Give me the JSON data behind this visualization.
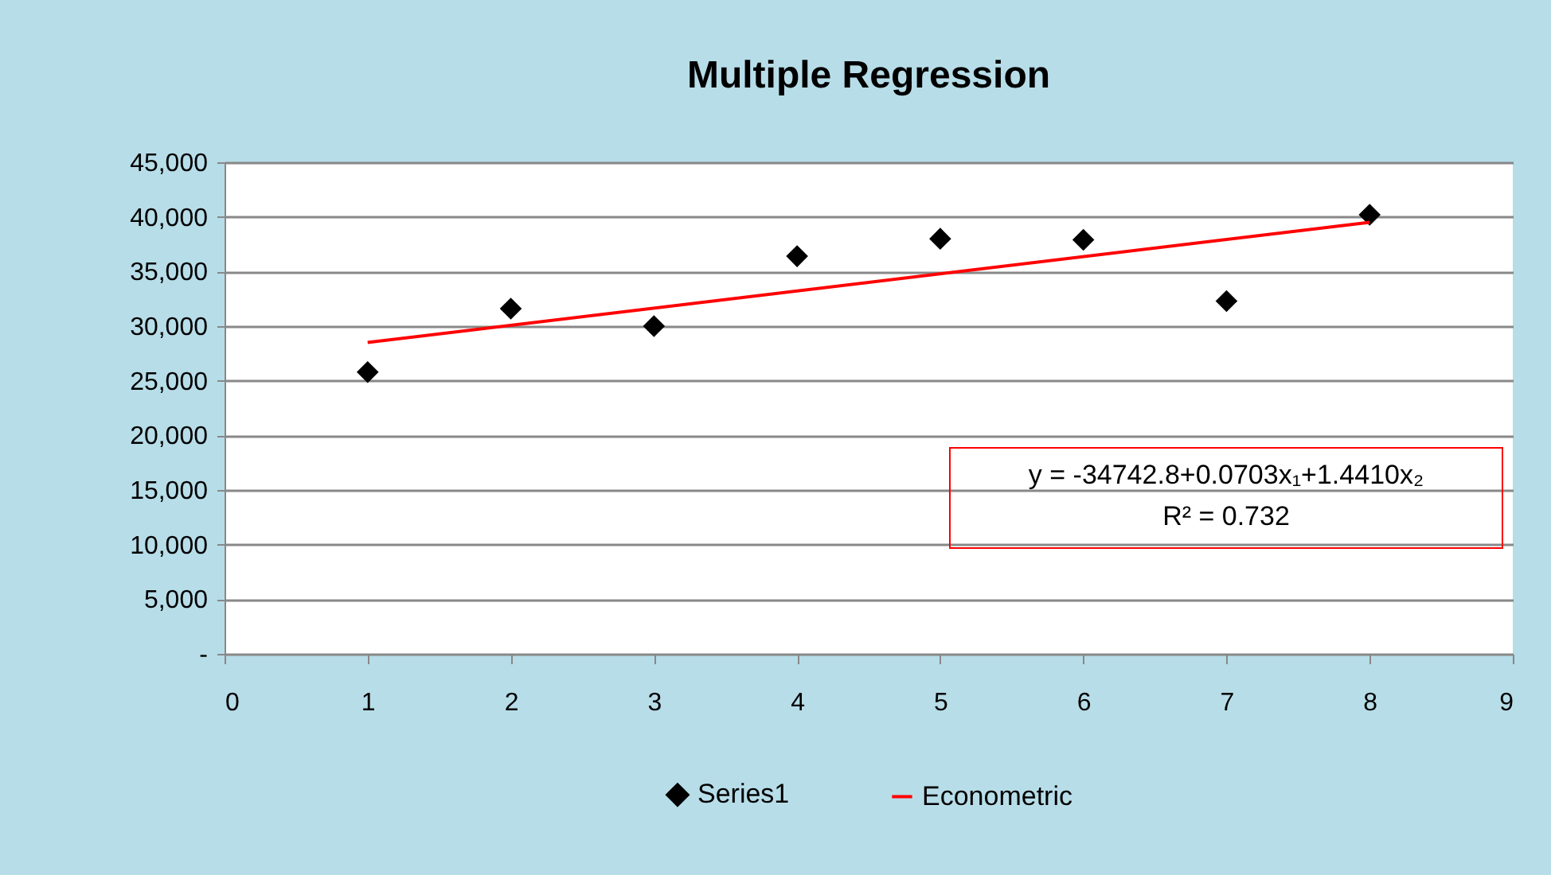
{
  "chart_data": {
    "type": "scatter",
    "title": "Multiple Regression",
    "series": [
      {
        "name": "Series1",
        "type": "scatter",
        "color": "#000000",
        "marker": "diamond",
        "x": [
          1,
          2,
          3,
          4,
          5,
          6,
          7,
          8
        ],
        "values": [
          25800,
          31600,
          30000,
          36400,
          38000,
          37900,
          32300,
          40200
        ]
      },
      {
        "name": "Econometric",
        "type": "line",
        "color": "#ff0000",
        "x": [
          1,
          8
        ],
        "values": [
          28500,
          39500
        ]
      }
    ],
    "xlim": [
      0,
      9
    ],
    "xticks": [
      0,
      1,
      2,
      3,
      4,
      5,
      6,
      7,
      8,
      9
    ],
    "ylim": [
      0,
      45000
    ],
    "yticks": [
      {
        "value": 0,
        "label": "-"
      },
      {
        "value": 5000,
        "label": "5,000"
      },
      {
        "value": 10000,
        "label": "10,000"
      },
      {
        "value": 15000,
        "label": "15,000"
      },
      {
        "value": 20000,
        "label": "20,000"
      },
      {
        "value": 25000,
        "label": "25,000"
      },
      {
        "value": 30000,
        "label": "30,000"
      },
      {
        "value": 35000,
        "label": "35,000"
      },
      {
        "value": 40000,
        "label": "40,000"
      },
      {
        "value": 45000,
        "label": "45,000"
      }
    ],
    "grid": "y",
    "legend": "bottom",
    "annotations": [
      "y = -34742.8+0.0703x₁+1.4410x₂",
      "R² = 0.732"
    ]
  }
}
